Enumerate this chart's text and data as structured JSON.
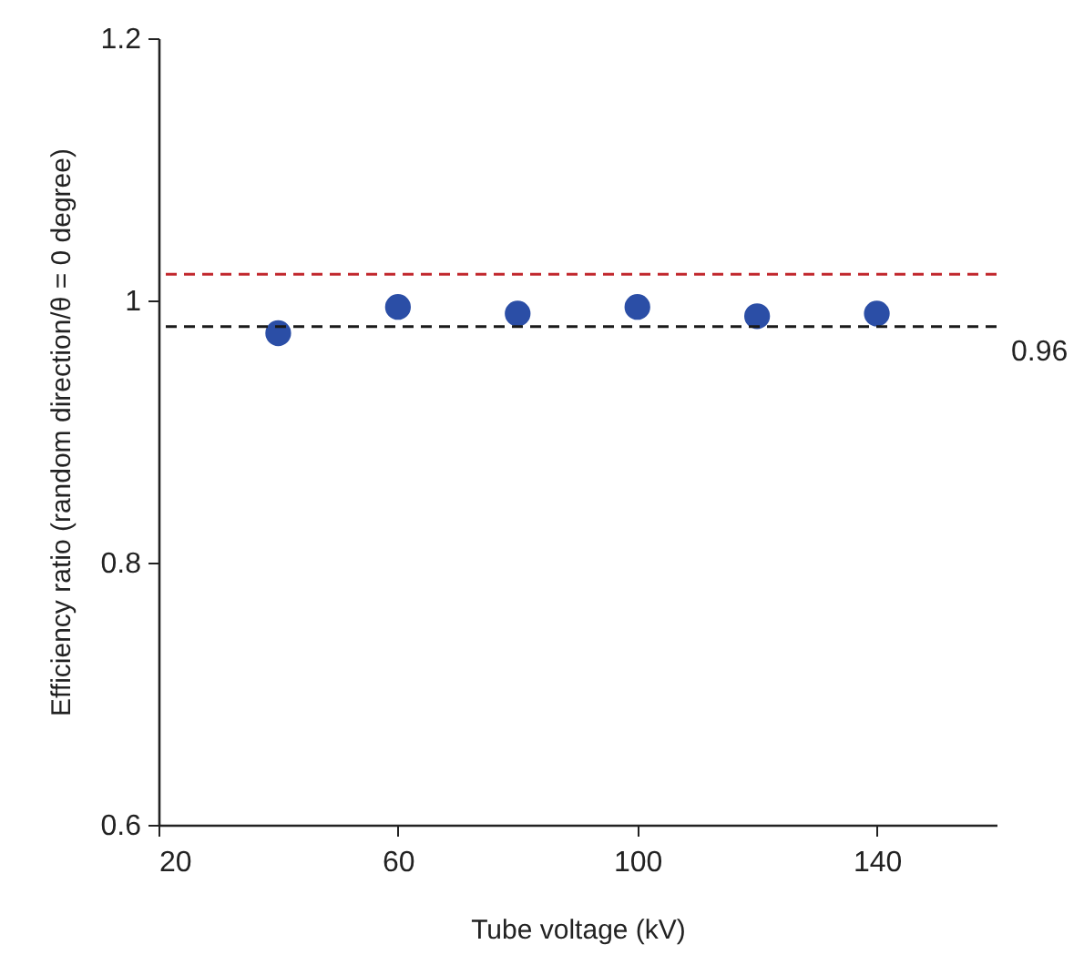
{
  "chart_data": {
    "type": "scatter",
    "xlabel": "Tube voltage (kV)",
    "ylabel": "Efficiency ratio (random direction/θ = 0 degree)",
    "x": [
      40,
      60,
      80,
      100,
      120,
      140
    ],
    "series": [
      {
        "color": "#2b4ea6",
        "values": [
          0.975,
          0.995,
          0.99,
          0.995,
          0.988,
          0.99
        ]
      }
    ],
    "xlim": [
      20,
      160
    ],
    "xticks": [
      20,
      60,
      100,
      140
    ],
    "ylim": [
      0.6,
      1.2
    ],
    "yticks": [
      0.6,
      0.8,
      1,
      1.2
    ],
    "ref_lines": [
      {
        "axis": "y",
        "value": 1.02,
        "color": "#c1272d",
        "line_style": "dashed"
      },
      {
        "axis": "y",
        "value": 0.98,
        "color": "#1a1a1a",
        "line_style": "dashed"
      }
    ],
    "annotations": [
      "0.96"
    ],
    "grid": false,
    "marker": "circle"
  }
}
